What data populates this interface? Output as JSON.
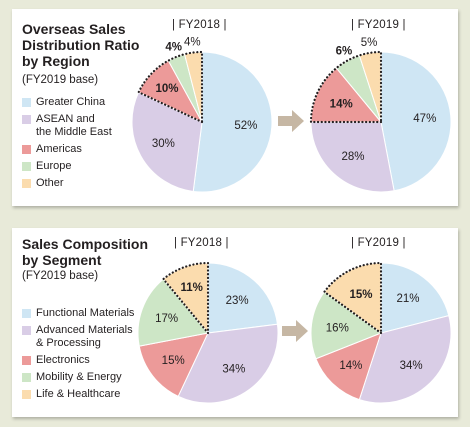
{
  "colors": {
    "greater_china": "#cfe6f4",
    "asean": "#d9cde6",
    "americas": "#ec9a99",
    "europe": "#cde6c6",
    "other": "#fbdcae",
    "functional": "#cfe6f4",
    "advanced": "#d9cde6",
    "electronics": "#ec9a99",
    "mobility": "#cde6c6",
    "life": "#fbdcae",
    "arrow": "#c6b7a4"
  },
  "chart_data": [
    {
      "type": "pie",
      "title_lines": [
        "Overseas Sales",
        "Distribution Ratio",
        "by Region"
      ],
      "subtitle": "(FY2019 base)",
      "legend": [
        {
          "label": "Greater China",
          "color_key": "greater_china"
        },
        {
          "label": "ASEAN and\nthe Middle East",
          "color_key": "asean"
        },
        {
          "label": "Americas",
          "color_key": "americas"
        },
        {
          "label": "Europe",
          "color_key": "europe"
        },
        {
          "label": "Other",
          "color_key": "other"
        }
      ],
      "categories": [
        "Greater China",
        "ASEAN and the Middle East",
        "Americas",
        "Europe",
        "Other"
      ],
      "series": [
        {
          "name": "FY2018",
          "header": "| FY2018 |",
          "values": [
            52,
            30,
            10,
            4,
            4
          ],
          "labels": [
            "52%",
            "30%",
            "10%",
            "4%",
            "4%"
          ]
        },
        {
          "name": "FY2019",
          "header": "| FY2019 |",
          "values": [
            47,
            28,
            14,
            6,
            5
          ],
          "labels": [
            "47%",
            "28%",
            "14%",
            "6%",
            "5%"
          ]
        }
      ],
      "emphasized": [
        "Americas",
        "Europe",
        "Other"
      ],
      "bold_labels": [
        "Americas",
        "Europe"
      ]
    },
    {
      "type": "pie",
      "title_lines": [
        "Sales Composition",
        "by Segment"
      ],
      "subtitle": "(FY2019 base)",
      "legend": [
        {
          "label": "Functional Materials",
          "color_key": "functional"
        },
        {
          "label": "Advanced Materials\n& Processing",
          "color_key": "advanced"
        },
        {
          "label": "Electronics",
          "color_key": "electronics"
        },
        {
          "label": "Mobility & Energy",
          "color_key": "mobility"
        },
        {
          "label": "Life & Healthcare",
          "color_key": "life"
        }
      ],
      "categories": [
        "Functional Materials",
        "Advanced Materials & Processing",
        "Electronics",
        "Mobility & Energy",
        "Life & Healthcare"
      ],
      "series": [
        {
          "name": "FY2018",
          "header": "| FY2018 |",
          "values": [
            23,
            34,
            15,
            17,
            11
          ],
          "labels": [
            "23%",
            "34%",
            "15%",
            "17%",
            "11%"
          ]
        },
        {
          "name": "FY2019",
          "header": "| FY2019 |",
          "values": [
            21,
            34,
            14,
            16,
            15
          ],
          "labels": [
            "21%",
            "34%",
            "14%",
            "16%",
            "15%"
          ]
        }
      ],
      "emphasized": [
        "Life & Healthcare"
      ],
      "bold_labels": [
        "Life & Healthcare"
      ]
    }
  ]
}
